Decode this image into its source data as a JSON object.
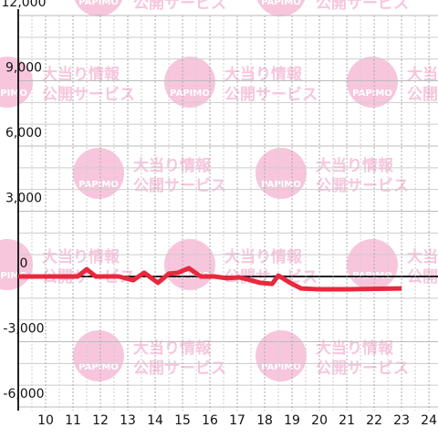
{
  "chart_data": {
    "type": "line",
    "watermark": {
      "brand": "PAPIMO",
      "line1": "大当り情報",
      "line2": "公開サービス"
    },
    "x": [
      9,
      11.17,
      11.5,
      11.83,
      12.67,
      13.2,
      13.6,
      14.1,
      14.5,
      14.83,
      15.23,
      15.67,
      16.17,
      16.6,
      17.07,
      17.5,
      17.83,
      18.27,
      18.5,
      18.93,
      19.33,
      20,
      21,
      23
    ],
    "series": [
      {
        "color": "#e8283c",
        "values": [
          0,
          0,
          330,
          0,
          0,
          -170,
          170,
          -290,
          130,
          170,
          380,
          0,
          0,
          -80,
          -40,
          -170,
          -290,
          -340,
          40,
          -290,
          -550,
          -590,
          -590,
          -550
        ]
      }
    ],
    "xlim": [
      9,
      24.33
    ],
    "xticks": [
      10,
      11,
      12,
      13,
      14,
      15,
      16,
      17,
      18,
      19,
      20,
      21,
      22,
      23,
      24
    ],
    "ylim": [
      -6000,
      12000
    ],
    "yticks": [
      {
        "value": -6000,
        "label": "-6,000"
      },
      {
        "value": -3000,
        "label": "-3,000"
      },
      0,
      {
        "value": 3000,
        "label": "3,000"
      },
      {
        "value": 6000,
        "label": "6,000"
      },
      {
        "value": 9000,
        "label": "9,000"
      },
      {
        "value": 12000,
        "label": "12,000"
      }
    ],
    "grid": true
  }
}
